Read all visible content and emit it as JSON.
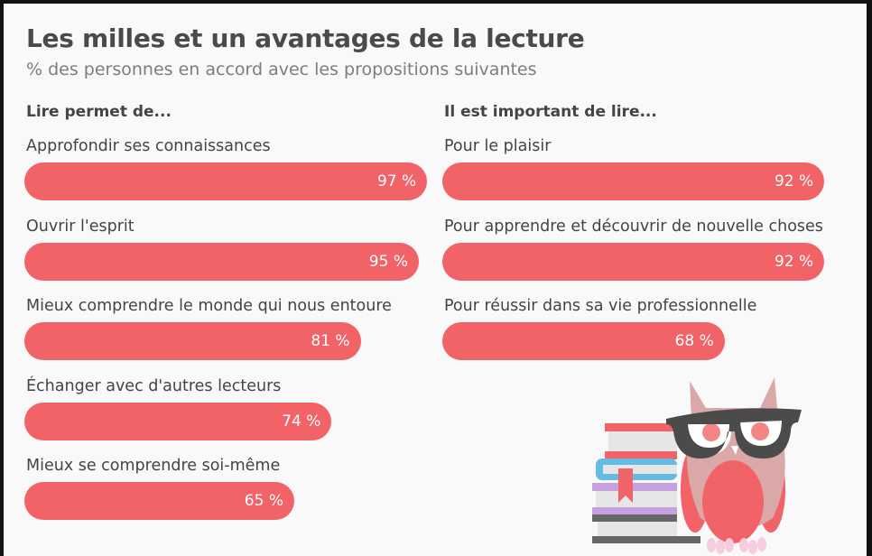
{
  "title": "Les milles et un avantages de la lecture",
  "subtitle": "% des personnes en accord avec les propositions suivantes",
  "colors": {
    "bar": "#f26367",
    "text": "#444444",
    "background": "#f9f9f9"
  },
  "illustration": "owl-with-glasses-on-books",
  "chart_data": [
    {
      "type": "bar",
      "orientation": "horizontal",
      "title": "Lire permet de...",
      "categories": [
        "Approfondir ses connaissances",
        "Ouvrir l'esprit",
        "Mieux comprendre le monde qui nous entoure",
        "Échanger avec d'autres lecteurs",
        "Mieux se comprendre soi-même"
      ],
      "values": [
        97,
        95,
        81,
        74,
        65
      ],
      "labels": [
        "97 %",
        "95 %",
        "81 %",
        "74 %",
        "65 %"
      ],
      "xlim": [
        0,
        100
      ]
    },
    {
      "type": "bar",
      "orientation": "horizontal",
      "title": "Il est important de lire...",
      "categories": [
        "Pour le plaisir",
        "Pour apprendre et découvrir de nouvelle choses",
        "Pour réussir dans sa vie professionnelle"
      ],
      "values": [
        92,
        92,
        68
      ],
      "labels": [
        "92 %",
        "92 %",
        "68 %"
      ],
      "xlim": [
        0,
        100
      ]
    }
  ]
}
